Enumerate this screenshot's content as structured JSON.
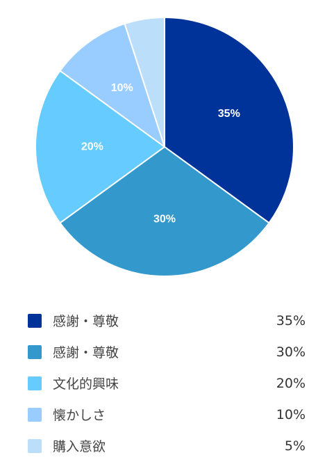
{
  "chart_data": {
    "type": "pie",
    "categories": [
      "感謝・尊敬",
      "感謝・尊敬",
      "文化的興味",
      "懐かしさ",
      "購入意欲"
    ],
    "values": [
      35,
      30,
      20,
      10,
      5
    ],
    "slice_labels": [
      "35%",
      "30%",
      "20%",
      "10%",
      ""
    ],
    "colors": [
      "#003399",
      "#3399cc",
      "#66ccff",
      "#99ccff",
      "#bbdefb"
    ],
    "title": "",
    "legend_position": "bottom",
    "legend": [
      {
        "label": "感謝・尊敬",
        "value": "35%",
        "color": "#003399"
      },
      {
        "label": "感謝・尊敬",
        "value": "30%",
        "color": "#3399cc"
      },
      {
        "label": "文化的興味",
        "value": "20%",
        "color": "#66ccff"
      },
      {
        "label": "懐かしさ",
        "value": "10%",
        "color": "#99ccff"
      },
      {
        "label": "購入意欲",
        "value": "5%",
        "color": "#bbdefb"
      }
    ]
  }
}
